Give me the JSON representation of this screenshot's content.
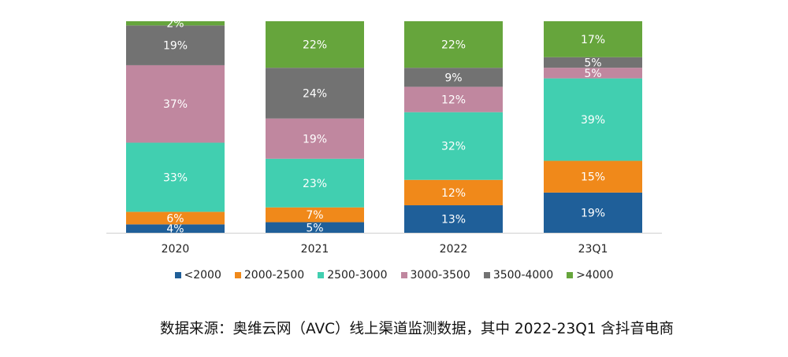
{
  "chart_data": {
    "type": "bar",
    "stacked": true,
    "percent_stacked": true,
    "categories": [
      "2020",
      "2021",
      "2022",
      "23Q1"
    ],
    "series": [
      {
        "name": "<2000",
        "color": "#1f5f99",
        "values": [
          4,
          5,
          13,
          19
        ]
      },
      {
        "name": "2000-2500",
        "color": "#f0891a",
        "values": [
          6,
          7,
          12,
          15
        ]
      },
      {
        "name": "2500-3000",
        "color": "#41cfb0",
        "values": [
          33,
          23,
          32,
          39
        ]
      },
      {
        "name": "3000-3500",
        "color": "#c0879f",
        "values": [
          37,
          19,
          12,
          5
        ]
      },
      {
        "name": "3500-4000",
        "color": "#727272",
        "values": [
          19,
          24,
          9,
          5
        ]
      },
      {
        "name": ">4000",
        "color": "#66a53c",
        "values": [
          2,
          22,
          22,
          17
        ]
      }
    ],
    "value_suffix": "%",
    "ylim": [
      0,
      100
    ],
    "grid": false,
    "legend_position": "bottom",
    "source": "数据来源：奥维云网（AVC）线上渠道监测数据，其中 2022-23Q1 含抖音电商"
  }
}
